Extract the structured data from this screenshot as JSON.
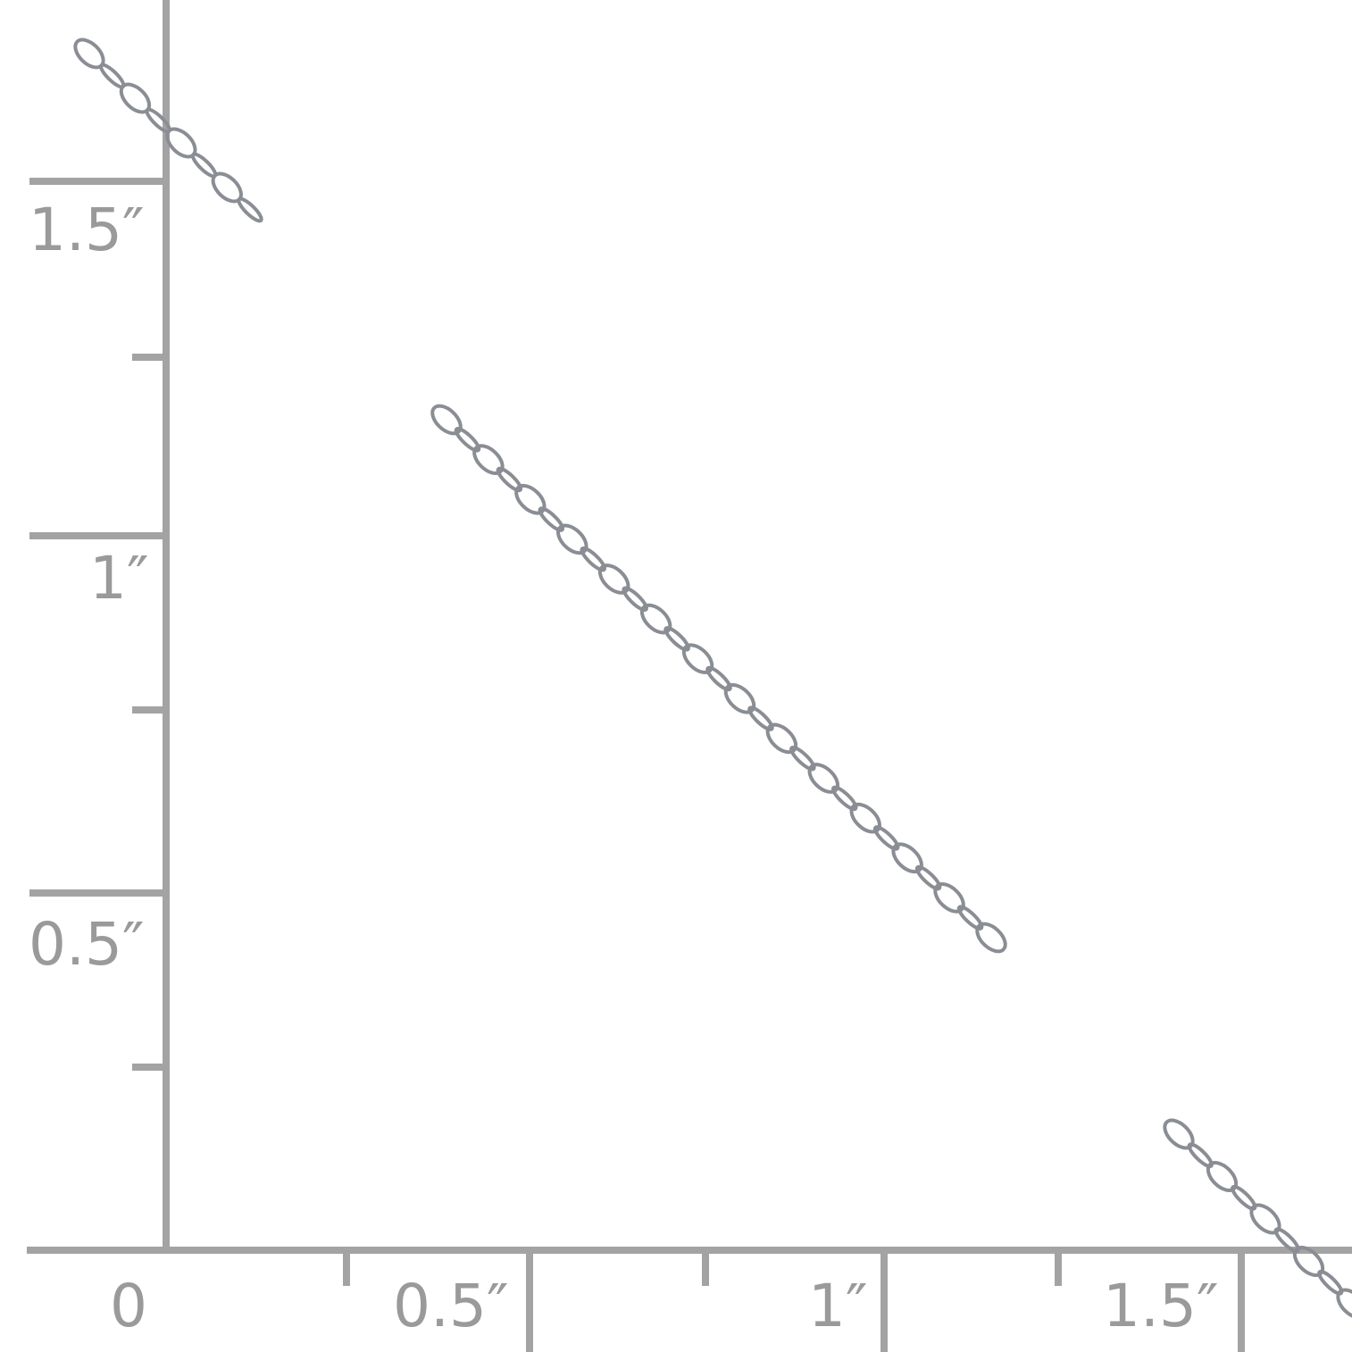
{
  "ruler": {
    "color": "#a3a3a3",
    "vertical_labels": [
      "1.5″",
      "1″",
      "0.5″"
    ],
    "horizontal_labels": [
      "0",
      "0.5″",
      "1″",
      "1.5″"
    ]
  },
  "product": {
    "subject": "starfish-station-chain",
    "metal_color": "#c9ccd0"
  }
}
